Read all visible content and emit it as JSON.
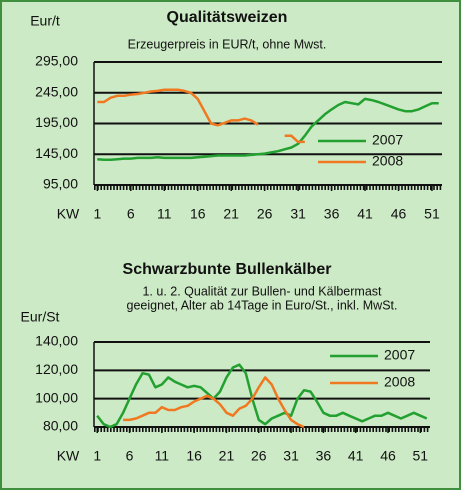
{
  "chart_data": [
    {
      "type": "line",
      "title": "Qualitätsweizen",
      "subtitle": "Erzeugerpreis in EUR/t, ohne Mwst.",
      "y_label": "Eur/t",
      "x_label": "KW",
      "x": [
        1,
        2,
        3,
        4,
        5,
        6,
        7,
        8,
        9,
        10,
        11,
        12,
        13,
        14,
        15,
        16,
        17,
        18,
        19,
        20,
        21,
        22,
        23,
        24,
        25,
        26,
        27,
        28,
        29,
        30,
        31,
        32,
        33,
        34,
        35,
        36,
        37,
        38,
        39,
        40,
        41,
        42,
        43,
        44,
        45,
        46,
        47,
        48,
        49,
        50,
        51,
        52
      ],
      "xlim": [
        0.5,
        52.5
      ],
      "xticks": [
        1,
        6,
        11,
        16,
        21,
        26,
        31,
        36,
        41,
        46,
        51
      ],
      "ylim": [
        95,
        295
      ],
      "yticks": [
        {
          "value": 95,
          "label": "95,00"
        },
        {
          "value": 145,
          "label": "145,00"
        },
        {
          "value": 195,
          "label": "195,00"
        },
        {
          "value": 245,
          "label": "245,00"
        },
        {
          "value": 295,
          "label": "295,00"
        }
      ],
      "grid": true,
      "series": [
        {
          "name": "2007",
          "color": "#22a030",
          "values": [
            137,
            136,
            136,
            137,
            138,
            138,
            139,
            139,
            139,
            140,
            139,
            139,
            139,
            139,
            139,
            140,
            141,
            142,
            143,
            143,
            143,
            143,
            143,
            144,
            145,
            146,
            148,
            150,
            153,
            156,
            162,
            175,
            190,
            200,
            210,
            218,
            225,
            230,
            228,
            226,
            235,
            233,
            230,
            226,
            222,
            218,
            215,
            215,
            218,
            223,
            228,
            228
          ]
        },
        {
          "name": "2008",
          "color": "#f07820",
          "values": [
            230,
            230,
            237,
            240,
            240,
            242,
            243,
            245,
            247,
            248,
            250,
            250,
            250,
            248,
            245,
            235,
            215,
            195,
            192,
            196,
            200,
            200,
            203,
            200,
            193,
            null,
            null,
            null,
            175,
            175,
            165,
            165,
            null,
            null,
            null,
            null,
            null,
            null,
            null,
            null,
            null,
            null,
            null,
            null,
            null,
            null,
            null,
            null,
            null,
            null,
            null,
            null
          ]
        }
      ]
    },
    {
      "type": "line",
      "title": "Schwarzbunte Bullenkälber",
      "subtitle": [
        "1. u. 2. Qualität zur Bullen- und Kälbermast",
        "geeignet, Alter ab 14Tage in Euro/St., inkl. MwSt."
      ],
      "y_label": "Eur/St",
      "x_label": "KW",
      "x": [
        1,
        2,
        3,
        4,
        5,
        6,
        7,
        8,
        9,
        10,
        11,
        12,
        13,
        14,
        15,
        16,
        17,
        18,
        19,
        20,
        21,
        22,
        23,
        24,
        25,
        26,
        27,
        28,
        29,
        30,
        31,
        32,
        33,
        34,
        35,
        36,
        37,
        38,
        39,
        40,
        41,
        42,
        43,
        44,
        45,
        46,
        47,
        48,
        49,
        50,
        51,
        52
      ],
      "xlim": [
        0.5,
        52.5
      ],
      "xticks": [
        1,
        6,
        11,
        16,
        21,
        26,
        31,
        36,
        41,
        46,
        51
      ],
      "ylim": [
        80,
        140
      ],
      "yticks": [
        {
          "value": 80,
          "label": "80,00"
        },
        {
          "value": 100,
          "label": "100,00"
        },
        {
          "value": 120,
          "label": "120,00"
        },
        {
          "value": 140,
          "label": "140,00"
        }
      ],
      "grid": true,
      "series": [
        {
          "name": "2007",
          "color": "#22a030",
          "values": [
            88,
            82,
            80,
            82,
            90,
            100,
            110,
            118,
            117,
            108,
            110,
            115,
            112,
            110,
            108,
            109,
            108,
            104,
            100,
            105,
            115,
            122,
            124,
            118,
            100,
            85,
            82,
            86,
            88,
            90,
            88,
            100,
            106,
            105,
            98,
            90,
            88,
            88,
            90,
            88,
            86,
            84,
            86,
            88,
            88,
            90,
            88,
            86,
            88,
            90,
            88,
            86
          ]
        },
        {
          "name": "2008",
          "color": "#f07820",
          "values": [
            null,
            null,
            null,
            null,
            85,
            85,
            86,
            88,
            90,
            90,
            94,
            92,
            92,
            94,
            95,
            98,
            100,
            102,
            100,
            96,
            90,
            88,
            93,
            95,
            100,
            108,
            115,
            110,
            100,
            92,
            85,
            82,
            80,
            null,
            null,
            null,
            null,
            null,
            null,
            null,
            null,
            null,
            null,
            null,
            null,
            null,
            null,
            null,
            null,
            null,
            null,
            null
          ]
        }
      ]
    }
  ]
}
